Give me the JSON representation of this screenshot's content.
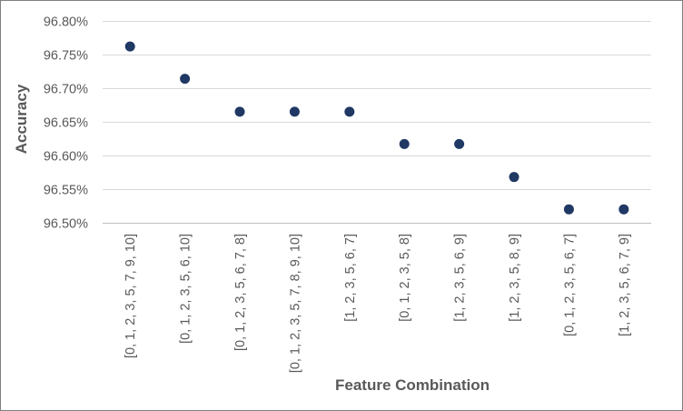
{
  "chart_data": {
    "type": "scatter",
    "title": "",
    "xlabel": "Feature Combination",
    "ylabel": "Accuracy",
    "categories": [
      "[0, 1, 2, 3, 5, 7, 9, 10]",
      "[0, 1, 2, 3, 5, 6, 10]",
      "[0, 1, 2, 3, 5, 6, 7, 8]",
      "[0, 1, 2, 3, 5, 7, 8, 9, 10]",
      "[1, 2, 3, 5, 6, 7]",
      "[0, 1, 2, 3, 5, 8]",
      "[1, 2, 3, 5, 6, 9]",
      "[1, 2, 3, 5, 8, 9]",
      "[0, 1, 2, 3, 5, 6, 7]",
      "[1, 2, 3, 5, 6, 7, 9]"
    ],
    "values": [
      96.762,
      96.714,
      96.665,
      96.665,
      96.665,
      96.617,
      96.617,
      96.568,
      96.52,
      96.52
    ],
    "ylim": [
      96.5,
      96.8
    ],
    "yticks": [
      "96.50%",
      "96.55%",
      "96.60%",
      "96.65%",
      "96.70%",
      "96.75%",
      "96.80%"
    ],
    "ytick_values": [
      96.5,
      96.55,
      96.6,
      96.65,
      96.7,
      96.75,
      96.8
    ],
    "grid": true,
    "legend": "none",
    "marker_color": "#1f3864",
    "grid_color": "#d9d9d9",
    "text_color": "#595959"
  }
}
